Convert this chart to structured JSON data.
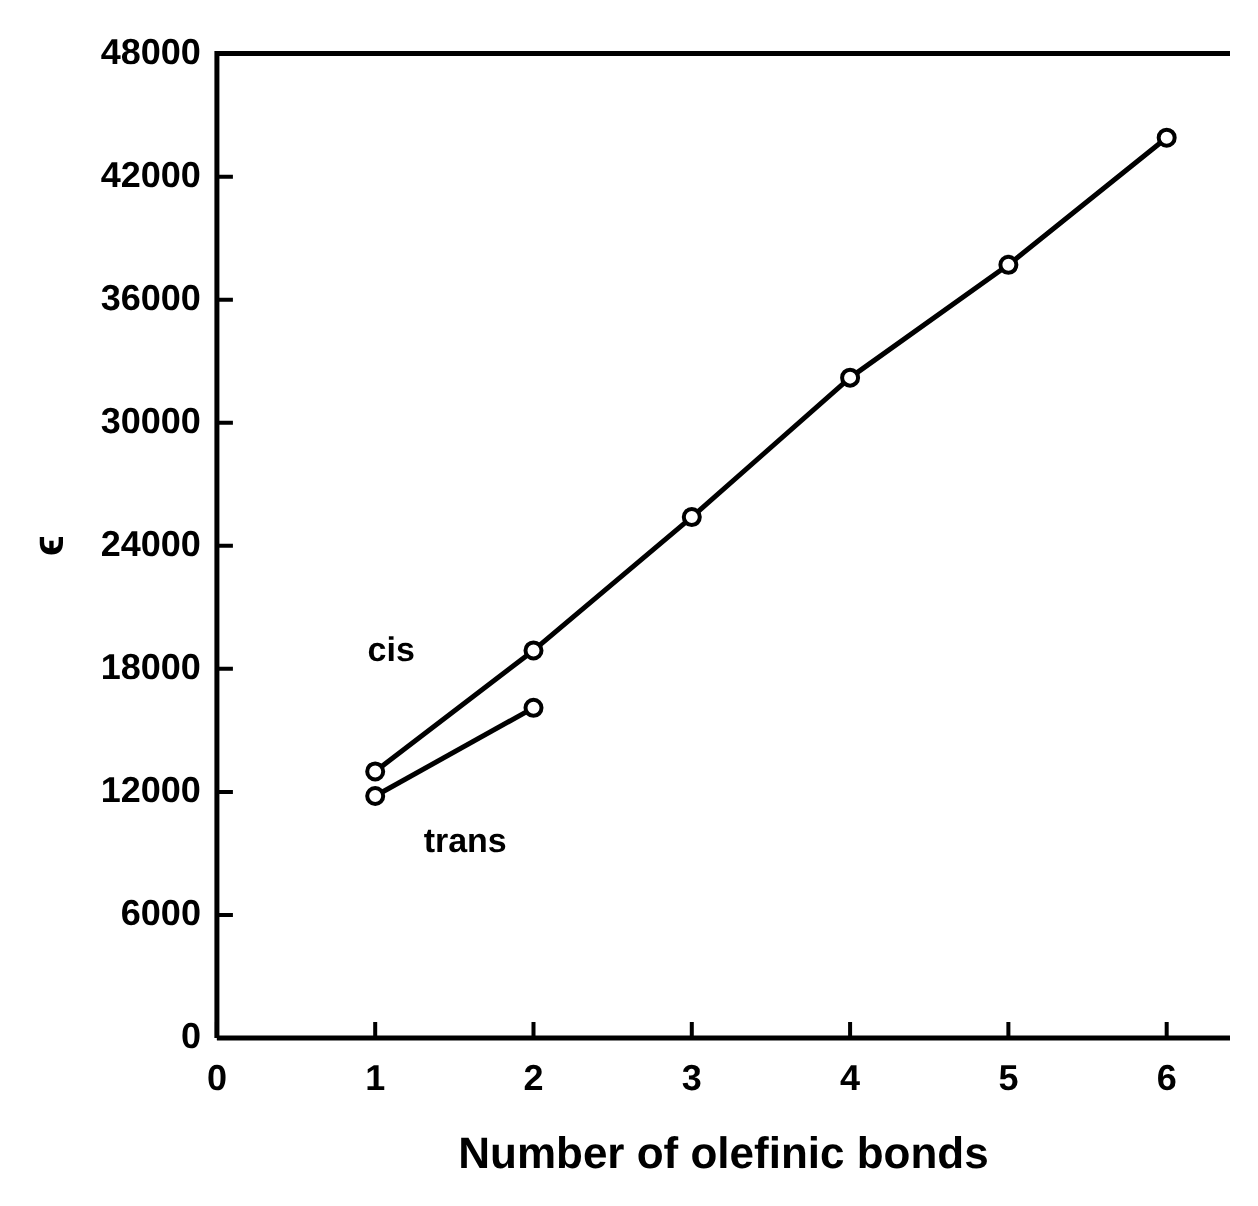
{
  "chart_data": {
    "type": "line",
    "xlabel": "Number of olefinic bonds",
    "ylabel": "ϵ",
    "xlim": [
      0,
      6.4
    ],
    "xticks": [
      0,
      1,
      2,
      3,
      4,
      5,
      6
    ],
    "ylim": [
      0,
      48000
    ],
    "yticks": [
      0,
      6000,
      12000,
      18000,
      24000,
      30000,
      36000,
      42000,
      48000
    ],
    "grid": false,
    "legend": false,
    "marker": "circle",
    "line_style": "solid",
    "series": [
      {
        "name": "cis",
        "color": "#000000",
        "x": [
          1,
          2,
          3,
          4,
          5,
          6
        ],
        "values": [
          13000,
          18900,
          25400,
          32200,
          37700,
          43900
        ]
      },
      {
        "name": "trans",
        "color": "#000000",
        "x": [
          1,
          2
        ],
        "values": [
          11800,
          16100
        ]
      }
    ]
  }
}
